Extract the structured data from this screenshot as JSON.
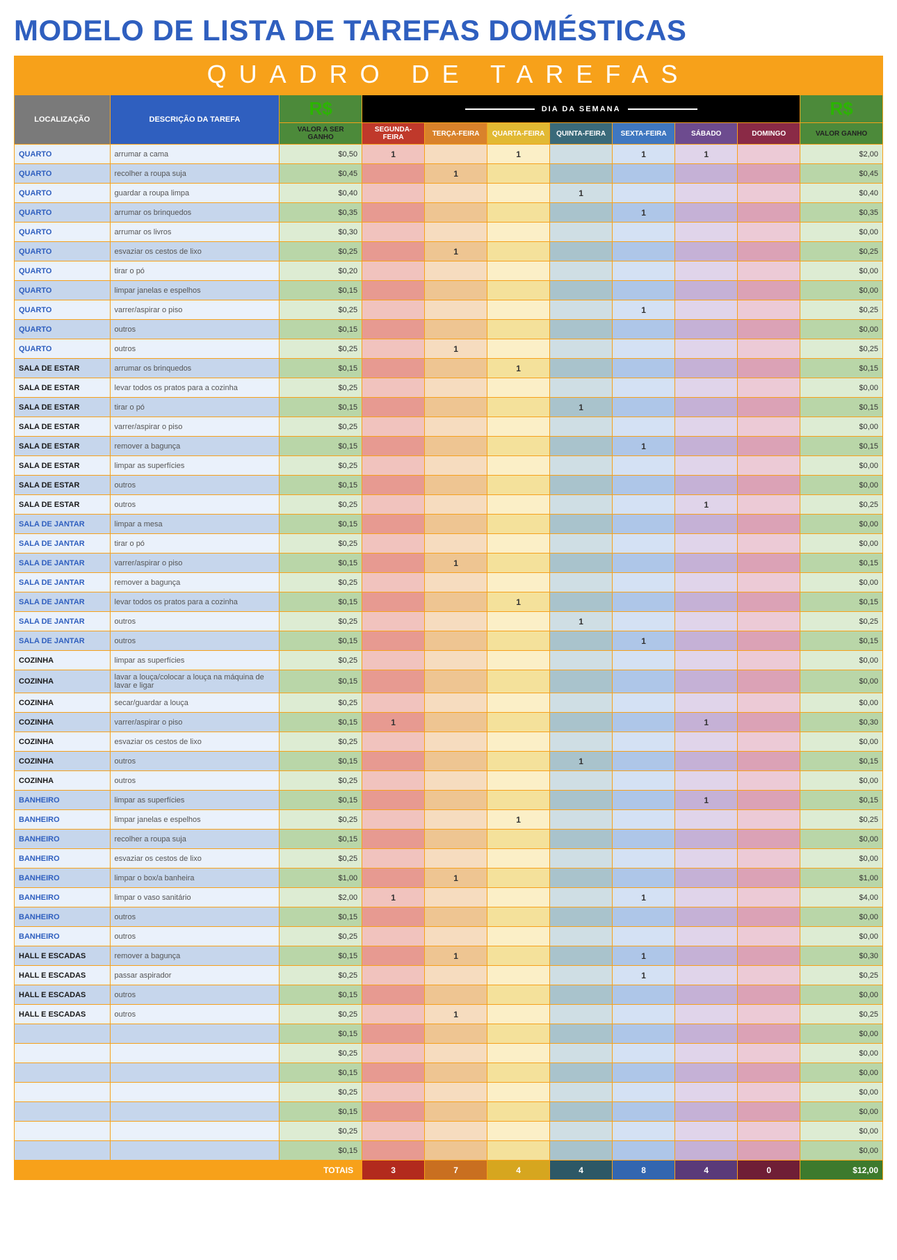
{
  "title": "MODELO DE LISTA DE TAREFAS DOMÉSTICAS",
  "banner": "QUADRO DE TAREFAS",
  "currency_symbol": "R$",
  "headers": {
    "location": "LOCALIZAÇÃO",
    "description": "DESCRIÇÃO DA TAREFA",
    "value_to_earn": "VALOR A SER GANHO",
    "week_label": "DIA DA SEMANA",
    "value_earned": "VALOR GANHO",
    "days": [
      "SEGUNDA-FEIRA",
      "TERÇA-FEIRA",
      "QUARTA-FEIRA",
      "QUINTA-FEIRA",
      "SEXTA-FEIRA",
      "SÁBADO",
      "DOMINGO"
    ]
  },
  "colors": {
    "accent_orange": "#f7a11a",
    "title_blue": "#2f5fbf",
    "header_gray": "#7a7a7a",
    "header_blue": "#2f5fbf",
    "header_green": "#4c8a3a",
    "header_black": "#000000",
    "day_headers": [
      "#c0392b",
      "#d9822b",
      "#e2b933",
      "#3a6a7a",
      "#3f77c0",
      "#6d4b8f",
      "#8a2a46"
    ],
    "alt_row_light": {
      "loc": "#eaf1fb",
      "val": "#ddecd3",
      "days": [
        "#f1c3be",
        "#f6dcbf",
        "#fbefc7",
        "#cfdee4",
        "#d4e1f4",
        "#e0d4ea",
        "#eccad6"
      ]
    },
    "alt_row_dark": {
      "loc": "#c6d6ec",
      "val": "#b9d6a8",
      "days": [
        "#e79a91",
        "#eec592",
        "#f4e19b",
        "#a9c3cc",
        "#aec6e8",
        "#c5b1d6",
        "#dba2b6"
      ]
    },
    "totals_days": [
      "#b22a1d",
      "#c96f20",
      "#d6a61f",
      "#2d5866",
      "#3366b0",
      "#5a3a79",
      "#6f1e36"
    ],
    "totals_value": "#3d7a2d"
  },
  "location_groups": {
    "QUARTO": "loc-QUARTO",
    "SALA DE ESTAR": "loc-SALA-ESTAR",
    "SALA DE JANTAR": "loc-SALA-JANTAR",
    "COZINHA": "loc-COZINHA",
    "BANHEIRO": "loc-BANHEIRO",
    "HALL E ESCADAS": "loc-HALL",
    "": "loc-NONE"
  },
  "rows": [
    {
      "loc": "QUARTO",
      "desc": "arrumar a cama",
      "valA": "$0,50",
      "days": [
        "1",
        "",
        "1",
        "",
        "1",
        "1",
        ""
      ],
      "valG": "$2,00"
    },
    {
      "loc": "QUARTO",
      "desc": "recolher a roupa suja",
      "valA": "$0,45",
      "days": [
        "",
        "1",
        "",
        "",
        "",
        "",
        ""
      ],
      "valG": "$0,45"
    },
    {
      "loc": "QUARTO",
      "desc": "guardar a roupa limpa",
      "valA": "$0,40",
      "days": [
        "",
        "",
        "",
        "1",
        "",
        "",
        ""
      ],
      "valG": "$0,40"
    },
    {
      "loc": "QUARTO",
      "desc": "arrumar os brinquedos",
      "valA": "$0,35",
      "days": [
        "",
        "",
        "",
        "",
        "1",
        "",
        ""
      ],
      "valG": "$0,35"
    },
    {
      "loc": "QUARTO",
      "desc": "arrumar os livros",
      "valA": "$0,30",
      "days": [
        "",
        "",
        "",
        "",
        "",
        "",
        ""
      ],
      "valG": "$0,00"
    },
    {
      "loc": "QUARTO",
      "desc": "esvaziar os cestos de lixo",
      "valA": "$0,25",
      "days": [
        "",
        "1",
        "",
        "",
        "",
        "",
        ""
      ],
      "valG": "$0,25"
    },
    {
      "loc": "QUARTO",
      "desc": "tirar o pó",
      "valA": "$0,20",
      "days": [
        "",
        "",
        "",
        "",
        "",
        "",
        ""
      ],
      "valG": "$0,00"
    },
    {
      "loc": "QUARTO",
      "desc": "limpar janelas e espelhos",
      "valA": "$0,15",
      "days": [
        "",
        "",
        "",
        "",
        "",
        "",
        ""
      ],
      "valG": "$0,00"
    },
    {
      "loc": "QUARTO",
      "desc": "varrer/aspirar o piso",
      "valA": "$0,25",
      "days": [
        "",
        "",
        "",
        "",
        "1",
        "",
        ""
      ],
      "valG": "$0,25"
    },
    {
      "loc": "QUARTO",
      "desc": "outros",
      "valA": "$0,15",
      "days": [
        "",
        "",
        "",
        "",
        "",
        "",
        ""
      ],
      "valG": "$0,00"
    },
    {
      "loc": "QUARTO",
      "desc": "outros",
      "valA": "$0,25",
      "days": [
        "",
        "1",
        "",
        "",
        "",
        "",
        ""
      ],
      "valG": "$0,25"
    },
    {
      "loc": "SALA DE ESTAR",
      "desc": "arrumar os brinquedos",
      "valA": "$0,15",
      "days": [
        "",
        "",
        "1",
        "",
        "",
        "",
        ""
      ],
      "valG": "$0,15"
    },
    {
      "loc": "SALA DE ESTAR",
      "desc": "levar todos os pratos para a cozinha",
      "valA": "$0,25",
      "days": [
        "",
        "",
        "",
        "",
        "",
        "",
        ""
      ],
      "valG": "$0,00"
    },
    {
      "loc": "SALA DE ESTAR",
      "desc": "tirar o pó",
      "valA": "$0,15",
      "days": [
        "",
        "",
        "",
        "1",
        "",
        "",
        ""
      ],
      "valG": "$0,15"
    },
    {
      "loc": "SALA DE ESTAR",
      "desc": "varrer/aspirar o piso",
      "valA": "$0,25",
      "days": [
        "",
        "",
        "",
        "",
        "",
        "",
        ""
      ],
      "valG": "$0,00"
    },
    {
      "loc": "SALA DE ESTAR",
      "desc": "remover a bagunça",
      "valA": "$0,15",
      "days": [
        "",
        "",
        "",
        "",
        "1",
        "",
        ""
      ],
      "valG": "$0,15"
    },
    {
      "loc": "SALA DE ESTAR",
      "desc": "limpar as superfícies",
      "valA": "$0,25",
      "days": [
        "",
        "",
        "",
        "",
        "",
        "",
        ""
      ],
      "valG": "$0,00"
    },
    {
      "loc": "SALA DE ESTAR",
      "desc": "outros",
      "valA": "$0,15",
      "days": [
        "",
        "",
        "",
        "",
        "",
        "",
        ""
      ],
      "valG": "$0,00"
    },
    {
      "loc": "SALA DE ESTAR",
      "desc": "outros",
      "valA": "$0,25",
      "days": [
        "",
        "",
        "",
        "",
        "",
        "1",
        ""
      ],
      "valG": "$0,25"
    },
    {
      "loc": "SALA DE JANTAR",
      "desc": "limpar a mesa",
      "valA": "$0,15",
      "days": [
        "",
        "",
        "",
        "",
        "",
        "",
        ""
      ],
      "valG": "$0,00"
    },
    {
      "loc": "SALA DE JANTAR",
      "desc": "tirar o pó",
      "valA": "$0,25",
      "days": [
        "",
        "",
        "",
        "",
        "",
        "",
        ""
      ],
      "valG": "$0,00"
    },
    {
      "loc": "SALA DE JANTAR",
      "desc": "varrer/aspirar o piso",
      "valA": "$0,15",
      "days": [
        "",
        "1",
        "",
        "",
        "",
        "",
        ""
      ],
      "valG": "$0,15"
    },
    {
      "loc": "SALA DE JANTAR",
      "desc": "remover a bagunça",
      "valA": "$0,25",
      "days": [
        "",
        "",
        "",
        "",
        "",
        "",
        ""
      ],
      "valG": "$0,00"
    },
    {
      "loc": "SALA DE JANTAR",
      "desc": "levar todos os pratos para a cozinha",
      "valA": "$0,15",
      "days": [
        "",
        "",
        "1",
        "",
        "",
        "",
        ""
      ],
      "valG": "$0,15"
    },
    {
      "loc": "SALA DE JANTAR",
      "desc": "outros",
      "valA": "$0,25",
      "days": [
        "",
        "",
        "",
        "1",
        "",
        "",
        ""
      ],
      "valG": "$0,25"
    },
    {
      "loc": "SALA DE JANTAR",
      "desc": "outros",
      "valA": "$0,15",
      "days": [
        "",
        "",
        "",
        "",
        "1",
        "",
        ""
      ],
      "valG": "$0,15"
    },
    {
      "loc": "COZINHA",
      "desc": "limpar as superfícies",
      "valA": "$0,25",
      "days": [
        "",
        "",
        "",
        "",
        "",
        "",
        ""
      ],
      "valG": "$0,00"
    },
    {
      "loc": "COZINHA",
      "desc": "lavar a louça/colocar a louça na máquina de lavar e ligar",
      "valA": "$0,15",
      "days": [
        "",
        "",
        "",
        "",
        "",
        "",
        ""
      ],
      "valG": "$0,00"
    },
    {
      "loc": "COZINHA",
      "desc": "secar/guardar a louça",
      "valA": "$0,25",
      "days": [
        "",
        "",
        "",
        "",
        "",
        "",
        ""
      ],
      "valG": "$0,00"
    },
    {
      "loc": "COZINHA",
      "desc": "varrer/aspirar o piso",
      "valA": "$0,15",
      "days": [
        "1",
        "",
        "",
        "",
        "",
        "1",
        ""
      ],
      "valG": "$0,30"
    },
    {
      "loc": "COZINHA",
      "desc": "esvaziar os cestos de lixo",
      "valA": "$0,25",
      "days": [
        "",
        "",
        "",
        "",
        "",
        "",
        ""
      ],
      "valG": "$0,00"
    },
    {
      "loc": "COZINHA",
      "desc": "outros",
      "valA": "$0,15",
      "days": [
        "",
        "",
        "",
        "1",
        "",
        "",
        ""
      ],
      "valG": "$0,15"
    },
    {
      "loc": "COZINHA",
      "desc": "outros",
      "valA": "$0,25",
      "days": [
        "",
        "",
        "",
        "",
        "",
        "",
        ""
      ],
      "valG": "$0,00"
    },
    {
      "loc": "BANHEIRO",
      "desc": "limpar as superfícies",
      "valA": "$0,15",
      "days": [
        "",
        "",
        "",
        "",
        "",
        "1",
        ""
      ],
      "valG": "$0,15"
    },
    {
      "loc": "BANHEIRO",
      "desc": "limpar janelas e espelhos",
      "valA": "$0,25",
      "days": [
        "",
        "",
        "1",
        "",
        "",
        "",
        ""
      ],
      "valG": "$0,25"
    },
    {
      "loc": "BANHEIRO",
      "desc": "recolher a roupa suja",
      "valA": "$0,15",
      "days": [
        "",
        "",
        "",
        "",
        "",
        "",
        ""
      ],
      "valG": "$0,00"
    },
    {
      "loc": "BANHEIRO",
      "desc": "esvaziar os cestos de lixo",
      "valA": "$0,25",
      "days": [
        "",
        "",
        "",
        "",
        "",
        "",
        ""
      ],
      "valG": "$0,00"
    },
    {
      "loc": "BANHEIRO",
      "desc": "limpar o box/a banheira",
      "valA": "$1,00",
      "days": [
        "",
        "1",
        "",
        "",
        "",
        "",
        ""
      ],
      "valG": "$1,00"
    },
    {
      "loc": "BANHEIRO",
      "desc": "limpar o vaso sanitário",
      "valA": "$2,00",
      "days": [
        "1",
        "",
        "",
        "",
        "1",
        "",
        ""
      ],
      "valG": "$4,00"
    },
    {
      "loc": "BANHEIRO",
      "desc": "outros",
      "valA": "$0,15",
      "days": [
        "",
        "",
        "",
        "",
        "",
        "",
        ""
      ],
      "valG": "$0,00"
    },
    {
      "loc": "BANHEIRO",
      "desc": "outros",
      "valA": "$0,25",
      "days": [
        "",
        "",
        "",
        "",
        "",
        "",
        ""
      ],
      "valG": "$0,00"
    },
    {
      "loc": "HALL E ESCADAS",
      "desc": "remover a bagunça",
      "valA": "$0,15",
      "days": [
        "",
        "1",
        "",
        "",
        "1",
        "",
        ""
      ],
      "valG": "$0,30"
    },
    {
      "loc": "HALL E ESCADAS",
      "desc": "passar aspirador",
      "valA": "$0,25",
      "days": [
        "",
        "",
        "",
        "",
        "1",
        "",
        ""
      ],
      "valG": "$0,25"
    },
    {
      "loc": "HALL E ESCADAS",
      "desc": "outros",
      "valA": "$0,15",
      "days": [
        "",
        "",
        "",
        "",
        "",
        "",
        ""
      ],
      "valG": "$0,00"
    },
    {
      "loc": "HALL E ESCADAS",
      "desc": "outros",
      "valA": "$0,25",
      "days": [
        "",
        "1",
        "",
        "",
        "",
        "",
        ""
      ],
      "valG": "$0,25"
    },
    {
      "loc": "",
      "desc": "",
      "valA": "$0,15",
      "days": [
        "",
        "",
        "",
        "",
        "",
        "",
        ""
      ],
      "valG": "$0,00"
    },
    {
      "loc": "",
      "desc": "",
      "valA": "$0,25",
      "days": [
        "",
        "",
        "",
        "",
        "",
        "",
        ""
      ],
      "valG": "$0,00"
    },
    {
      "loc": "",
      "desc": "",
      "valA": "$0,15",
      "days": [
        "",
        "",
        "",
        "",
        "",
        "",
        ""
      ],
      "valG": "$0,00"
    },
    {
      "loc": "",
      "desc": "",
      "valA": "$0,25",
      "days": [
        "",
        "",
        "",
        "",
        "",
        "",
        ""
      ],
      "valG": "$0,00"
    },
    {
      "loc": "",
      "desc": "",
      "valA": "$0,15",
      "days": [
        "",
        "",
        "",
        "",
        "",
        "",
        ""
      ],
      "valG": "$0,00"
    },
    {
      "loc": "",
      "desc": "",
      "valA": "$0,25",
      "days": [
        "",
        "",
        "",
        "",
        "",
        "",
        ""
      ],
      "valG": "$0,00"
    },
    {
      "loc": "",
      "desc": "",
      "valA": "$0,15",
      "days": [
        "",
        "",
        "",
        "",
        "",
        "",
        ""
      ],
      "valG": "$0,00"
    }
  ],
  "totals": {
    "label": "TOTAIS",
    "days": [
      "3",
      "7",
      "4",
      "4",
      "8",
      "4",
      "0"
    ],
    "value": "$12,00"
  }
}
